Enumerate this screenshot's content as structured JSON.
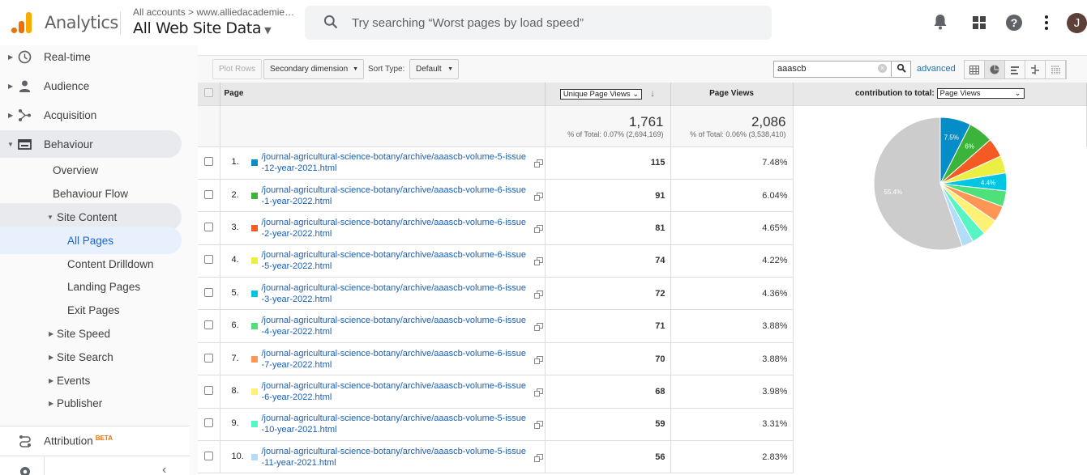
{
  "header": {
    "app_name": "Analytics",
    "breadcrumb": "All accounts > www.alliedacademies.o...",
    "view_name": "All Web Site Data",
    "search_placeholder": "Try searching “Worst pages by load speed”",
    "avatar_initial": "J"
  },
  "sidebar": {
    "items": [
      {
        "label": "Real-time",
        "icon": "clock-icon"
      },
      {
        "label": "Audience",
        "icon": "person-icon"
      },
      {
        "label": "Acquisition",
        "icon": "acquisition-icon"
      },
      {
        "label": "Behaviour",
        "icon": "behaviour-icon"
      }
    ],
    "behaviour_sub": [
      "Overview",
      "Behaviour Flow"
    ],
    "site_content": "Site Content",
    "site_content_sub": [
      "All Pages",
      "Content Drilldown",
      "Landing Pages",
      "Exit Pages"
    ],
    "behaviour_more": [
      "Site Speed",
      "Site Search",
      "Events",
      "Publisher"
    ],
    "attribution": "Attribution",
    "beta": "BETA"
  },
  "toolbar": {
    "plot_rows": "Plot Rows",
    "secondary_dimension": "Secondary dimension",
    "sort_type_label": "Sort Type:",
    "sort_type_value": "Default",
    "filter_value": "aaascb",
    "advanced": "advanced"
  },
  "table": {
    "col_page": "Page",
    "col_unique": "Unique Page Views",
    "col_pageviews": "Page Views",
    "contribution_label": "contribution to total:",
    "contribution_value": "Page Views",
    "totals": {
      "unique": "1,761",
      "unique_pct": "% of Total: 0.07% (2,694,169)",
      "pageviews": "2,086",
      "pageviews_pct": "% of Total: 0.06% (3,538,410)"
    },
    "rows": [
      {
        "n": "1.",
        "page": "/journal-agricultural-science-botany/archive/aaascb-volume-5-issue-12-year-2021.html",
        "unique": "115",
        "pct": "7.48%",
        "color": "#058dc7"
      },
      {
        "n": "2.",
        "page": "/journal-agricultural-science-botany/archive/aaascb-volume-6-issue-1-year-2022.html",
        "unique": "91",
        "pct": "6.04%",
        "color": "#3cb43c"
      },
      {
        "n": "3.",
        "page": "/journal-agricultural-science-botany/archive/aaascb-volume-6-issue-2-year-2022.html",
        "unique": "81",
        "pct": "4.65%",
        "color": "#f45b24"
      },
      {
        "n": "4.",
        "page": "/journal-agricultural-science-botany/archive/aaascb-volume-6-issue-5-year-2022.html",
        "unique": "74",
        "pct": "4.22%",
        "color": "#ebef43"
      },
      {
        "n": "5.",
        "page": "/journal-agricultural-science-botany/archive/aaascb-volume-6-issue-3-year-2022.html",
        "unique": "72",
        "pct": "4.36%",
        "color": "#00c6e4"
      },
      {
        "n": "6.",
        "page": "/journal-agricultural-science-botany/archive/aaascb-volume-6-issue-4-year-2022.html",
        "unique": "71",
        "pct": "3.88%",
        "color": "#4ee07a"
      },
      {
        "n": "7.",
        "page": "/journal-agricultural-science-botany/archive/aaascb-volume-6-issue-7-year-2022.html",
        "unique": "70",
        "pct": "3.88%",
        "color": "#ff9655"
      },
      {
        "n": "8.",
        "page": "/journal-agricultural-science-botany/archive/aaascb-volume-6-issue-6-year-2022.html",
        "unique": "68",
        "pct": "3.98%",
        "color": "#fff176"
      },
      {
        "n": "9.",
        "page": "/journal-agricultural-science-botany/archive/aaascb-volume-5-issue-10-year-2021.html",
        "unique": "59",
        "pct": "3.31%",
        "color": "#56f5c3"
      },
      {
        "n": "10.",
        "page": "/journal-agricultural-science-botany/archive/aaascb-volume-5-issue-11-year-2021.html",
        "unique": "56",
        "pct": "2.83%",
        "color": "#b3dcf9"
      }
    ]
  },
  "chart_data": {
    "type": "pie",
    "values": [
      7.48,
      6.04,
      4.65,
      4.22,
      4.36,
      3.88,
      3.88,
      3.98,
      3.31,
      2.83,
      55.4
    ],
    "colors": [
      "#058dc7",
      "#3cb43c",
      "#f45b24",
      "#ebef43",
      "#00c6e4",
      "#4ee07a",
      "#ff9655",
      "#fff176",
      "#56f5c3",
      "#b3dcf9",
      "#cccccc"
    ],
    "labels": [
      "7.5%",
      "6%",
      "",
      "",
      "4.4%",
      "",
      "",
      "",
      "",
      "",
      "55.4%"
    ]
  }
}
